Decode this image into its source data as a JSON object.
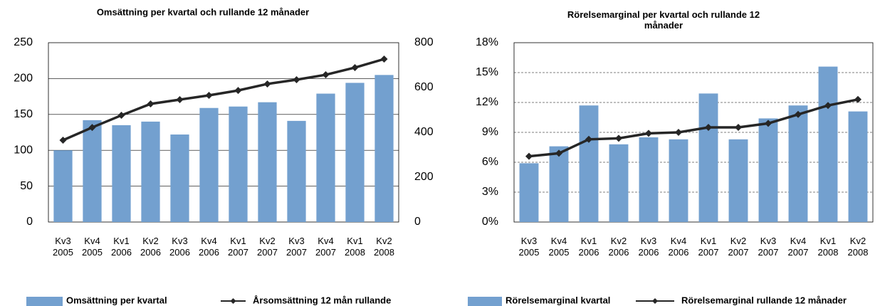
{
  "chart_data": [
    {
      "type": "bar",
      "title": "Omsättning per kvartal och rullande 12 månader",
      "categories": [
        "Kv3 2005",
        "Kv4 2005",
        "Kv1 2006",
        "Kv2 2006",
        "Kv3 2006",
        "Kv4 2006",
        "Kv1 2007",
        "Kv2 2007",
        "Kv3 2007",
        "Kv4 2007",
        "Kv1 2008",
        "Kv2 2008"
      ],
      "series": [
        {
          "name": "Omsättning per kvartal",
          "type": "bar",
          "color": "#73a0cf",
          "values": [
            100,
            142,
            135,
            140,
            122,
            159,
            161,
            167,
            141,
            179,
            194,
            205
          ]
        },
        {
          "name": "Årsomsättning 12 mån rullande",
          "type": "line",
          "axis": "y2",
          "color": "#262626",
          "values": [
            365,
            422,
            476,
            527,
            546,
            565,
            587,
            616,
            635,
            657,
            689,
            727
          ]
        }
      ],
      "ylim": [
        0,
        250
      ],
      "yticks": [
        0,
        50,
        100,
        150,
        200,
        250
      ],
      "y2lim": [
        0,
        800
      ],
      "y2ticks": [
        0,
        200,
        400,
        600,
        800
      ],
      "grid": true,
      "legend": "bottom"
    },
    {
      "type": "bar",
      "title": "Rörelsemarginal per kvartal och rullande 12 månader",
      "categories": [
        "Kv3 2005",
        "Kv4 2005",
        "Kv1 2006",
        "Kv2 2006",
        "Kv3 2006",
        "Kv4 2006",
        "Kv1 2007",
        "Kv2 2007",
        "Kv3 2007",
        "Kv4 2007",
        "Kv1 2008",
        "Kv2 2008"
      ],
      "series": [
        {
          "name": "Rörelsemarginal kvartal",
          "type": "bar",
          "color": "#73a0cf",
          "values": [
            5.9,
            7.6,
            11.7,
            7.8,
            8.5,
            8.3,
            12.9,
            8.3,
            10.4,
            11.7,
            15.6,
            11.1
          ]
        },
        {
          "name": "Rörelsemarginal rullande 12 månader",
          "type": "line",
          "color": "#262626",
          "values": [
            6.6,
            6.9,
            8.3,
            8.4,
            8.9,
            9.0,
            9.5,
            9.5,
            9.9,
            10.8,
            11.7,
            12.3
          ]
        }
      ],
      "ylim": [
        0,
        18
      ],
      "yticks": [
        {
          "value": 0,
          "label": "0%"
        },
        {
          "value": 3,
          "label": "3%"
        },
        {
          "value": 6,
          "label": "6%"
        },
        {
          "value": 9,
          "label": "9%"
        },
        {
          "value": 12,
          "label": "12%"
        },
        {
          "value": 15,
          "label": "15%"
        },
        {
          "value": 18,
          "label": "18%"
        }
      ],
      "grid": true,
      "legend": "bottom"
    }
  ]
}
